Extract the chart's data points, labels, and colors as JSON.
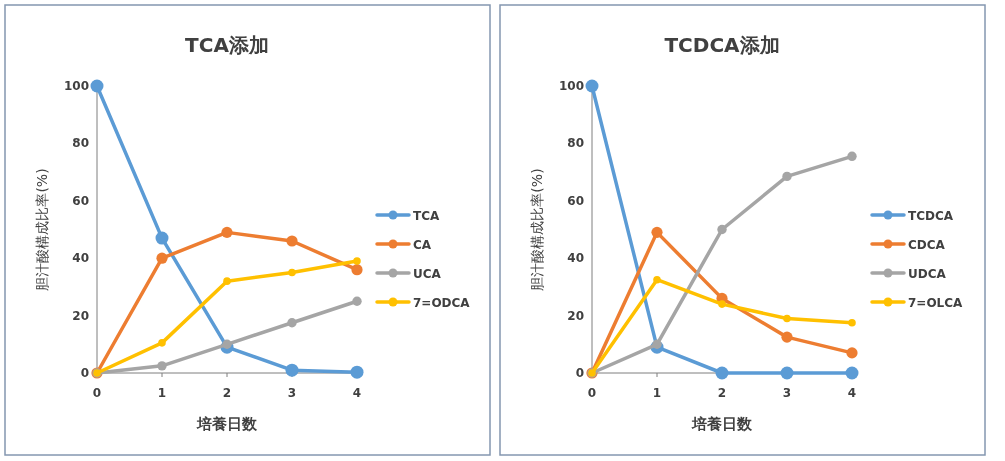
{
  "chart_data": [
    {
      "type": "line",
      "title": "TCA添加",
      "xlabel": "培養日数",
      "ylabel": "胆汁酸構成比率(%)",
      "x": [
        0,
        1,
        2,
        3,
        4
      ],
      "xlim": [
        0,
        4
      ],
      "xticks": [
        0,
        1,
        2,
        3,
        4
      ],
      "ylim": [
        0,
        100
      ],
      "yticks": [
        0,
        20,
        40,
        60,
        80,
        100
      ],
      "legend": "right",
      "marker": "circle",
      "grid": false,
      "series": [
        {
          "name": "TCA",
          "color": "#5b9bd5",
          "values": [
            100,
            47,
            9,
            1,
            0.3
          ]
        },
        {
          "name": "CA",
          "color": "#ed7d31",
          "values": [
            0,
            40,
            49,
            46,
            36
          ]
        },
        {
          "name": "UCA",
          "color": "#a5a5a5",
          "values": [
            0,
            2.5,
            10,
            17.5,
            25
          ]
        },
        {
          "name": "7=ODCA",
          "color": "#ffc000",
          "values": [
            0,
            10.5,
            32,
            35,
            39
          ]
        }
      ]
    },
    {
      "type": "line",
      "title": "TCDCA添加",
      "xlabel": "培養日数",
      "ylabel": "胆汁酸構成比率(%)",
      "x": [
        0,
        1,
        2,
        3,
        4
      ],
      "xlim": [
        0,
        4
      ],
      "xticks": [
        0,
        1,
        2,
        3,
        4
      ],
      "ylim": [
        0,
        100
      ],
      "yticks": [
        0,
        20,
        40,
        60,
        80,
        100
      ],
      "legend": "right",
      "marker": "circle",
      "grid": false,
      "series": [
        {
          "name": "TCDCA",
          "color": "#5b9bd5",
          "values": [
            100,
            9,
            0,
            0,
            0
          ]
        },
        {
          "name": "CDCA",
          "color": "#ed7d31",
          "values": [
            0,
            49,
            26,
            12.5,
            7
          ]
        },
        {
          "name": "UDCA",
          "color": "#a5a5a5",
          "values": [
            0,
            10,
            50,
            68.5,
            75.5
          ]
        },
        {
          "name": "7=OLCA",
          "color": "#ffc000",
          "values": [
            0,
            32.5,
            24,
            19,
            17.5
          ]
        }
      ]
    }
  ]
}
